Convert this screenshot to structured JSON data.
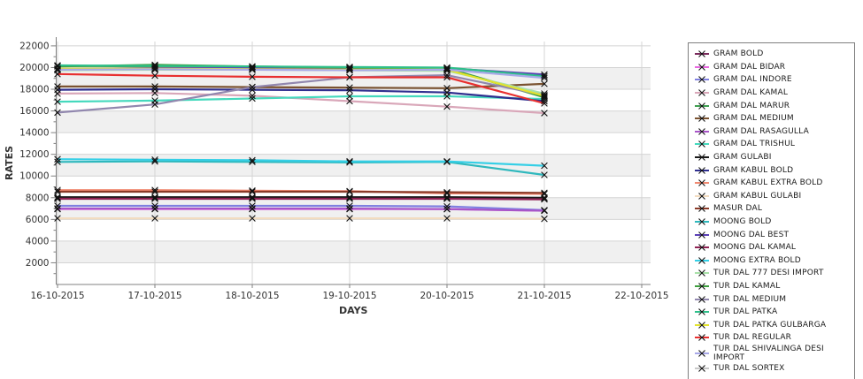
{
  "axes": {
    "x_title": "DAYS",
    "y_title": "RATES"
  },
  "chart_data": {
    "type": "line",
    "title": "",
    "xlabel": "DAYS",
    "ylabel": "RATES",
    "marker": "x",
    "grid": true,
    "legend_position": "right",
    "ylim": [
      0,
      22400
    ],
    "y_ticks": [
      2000,
      4000,
      6000,
      8000,
      10000,
      12000,
      14000,
      16000,
      18000,
      20000,
      22000
    ],
    "y_minor_step": 1000,
    "gray_bands": [
      [
        18000,
        20000
      ],
      [
        14000,
        16000
      ],
      [
        10000,
        12000
      ],
      [
        6000,
        8000
      ],
      [
        2000,
        4000
      ]
    ],
    "categories": [
      "16-10-2015",
      "17-10-2015",
      "18-10-2015",
      "19-10-2015",
      "20-10-2015",
      "21-10-2015",
      "22-10-2015"
    ],
    "data_dates": [
      "16-10-2015",
      "17-10-2015",
      "18-10-2015",
      "19-10-2015",
      "20-10-2015",
      "21-10-2015"
    ],
    "series": [
      {
        "name": "GRAM BOLD",
        "color": "#7a2b5c",
        "values": [
          7950,
          7950,
          7950,
          7950,
          7950,
          7900
        ]
      },
      {
        "name": "GRAM DAL BIDAR",
        "color": "#e868e0",
        "values": [
          6950,
          6950,
          6950,
          6950,
          6950,
          6800
        ]
      },
      {
        "name": "GRAM DAL INDORE",
        "color": "#8080e0",
        "values": [
          7250,
          7250,
          7250,
          7250,
          7200,
          6850
        ]
      },
      {
        "name": "GRAM DAL KAMAL",
        "color": "#d9a7b9",
        "values": [
          17600,
          17650,
          17400,
          16900,
          16400,
          15800
        ]
      },
      {
        "name": "GRAM DAL MARUR",
        "color": "#3e9e50",
        "values": [
          20150,
          20100,
          20050,
          20000,
          19950,
          17300
        ]
      },
      {
        "name": "GRAM DAL MEDIUM",
        "color": "#7a5230",
        "values": [
          18250,
          18250,
          18200,
          18150,
          18100,
          18500
        ]
      },
      {
        "name": "GRAM DAL RASAGULLA",
        "color": "#a855c8",
        "values": [
          7000,
          7000,
          7000,
          7000,
          6950,
          6800
        ]
      },
      {
        "name": "GRAM DAL TRISHUL",
        "color": "#45d9bd",
        "values": [
          16850,
          16950,
          17150,
          17350,
          17350,
          17100
        ]
      },
      {
        "name": "GRAM GULABI",
        "color": "#1a1a1a",
        "values": [
          8050,
          8050,
          8050,
          8050,
          8050,
          8000
        ]
      },
      {
        "name": "GRAM KABUL BOLD",
        "color": "#2f2f8f",
        "values": [
          17950,
          18000,
          17950,
          17900,
          17700,
          16900
        ]
      },
      {
        "name": "GRAM KABUL EXTRA BOLD",
        "color": "#f08a72",
        "values": [
          8700,
          8700,
          8650,
          8600,
          8400,
          8350
        ]
      },
      {
        "name": "GRAM KABUL GULABI",
        "color": "#f2dcc0",
        "values": [
          6100,
          6100,
          6100,
          6100,
          6100,
          6050
        ]
      },
      {
        "name": "MASUR DAL",
        "color": "#8a3a28",
        "values": [
          8550,
          8550,
          8550,
          8550,
          8500,
          8450
        ]
      },
      {
        "name": "MOONG BOLD",
        "color": "#2fb8bd",
        "values": [
          11300,
          11350,
          11300,
          11250,
          11300,
          10100
        ]
      },
      {
        "name": "MOONG DAL BEST",
        "color": "#5a3fb5",
        "values": [
          19850,
          19950,
          19950,
          19900,
          19950,
          19350
        ]
      },
      {
        "name": "MOONG DAL KAMAL",
        "color": "#8e2253",
        "values": [
          7900,
          7900,
          7900,
          7900,
          7900,
          7850
        ]
      },
      {
        "name": "MOONG EXTRA BOLD",
        "color": "#35cfe6",
        "values": [
          11550,
          11500,
          11450,
          11350,
          11350,
          10950
        ]
      },
      {
        "name": "TUR DAL  777 DESI IMPORT",
        "color": "#a8e0a8",
        "values": [
          19750,
          19800,
          19800,
          19750,
          19700,
          17600
        ]
      },
      {
        "name": "TUR DAL KAMAL",
        "color": "#3e9e3e",
        "values": [
          20100,
          20250,
          20100,
          20000,
          19900,
          17250
        ]
      },
      {
        "name": "TUR DAL MEDIUM",
        "color": "#9187ae",
        "values": [
          15850,
          16600,
          18200,
          19100,
          19300,
          17450
        ]
      },
      {
        "name": "TUR DAL PATKA",
        "color": "#2fbf8a",
        "values": [
          20200,
          20150,
          20100,
          20050,
          20000,
          19200
        ]
      },
      {
        "name": "TUR DAL PATKA GULBARGA",
        "color": "#e3e32e",
        "values": [
          19900,
          19900,
          19850,
          19800,
          19800,
          17400
        ]
      },
      {
        "name": "TUR DAL REGULAR",
        "color": "#e83030",
        "values": [
          19400,
          19250,
          19150,
          19100,
          19100,
          16700
        ]
      },
      {
        "name": "TUR DAL SHIVALINGA DESI IMPORT",
        "color": "#a8a8e8",
        "values": [
          19800,
          19850,
          19800,
          19750,
          19800,
          19050
        ]
      }
    ],
    "legend_cutoff_item": {
      "name": "TUR DAL SORTEX",
      "color": "#c8c8c8"
    }
  },
  "style": {
    "band_gray": "#f0f0f0",
    "grid_color": "#d4d4d4",
    "axis_color": "#808080",
    "tick_label_color": "#333333",
    "axis_title_color": "#333333",
    "marker_color": "#111111"
  }
}
